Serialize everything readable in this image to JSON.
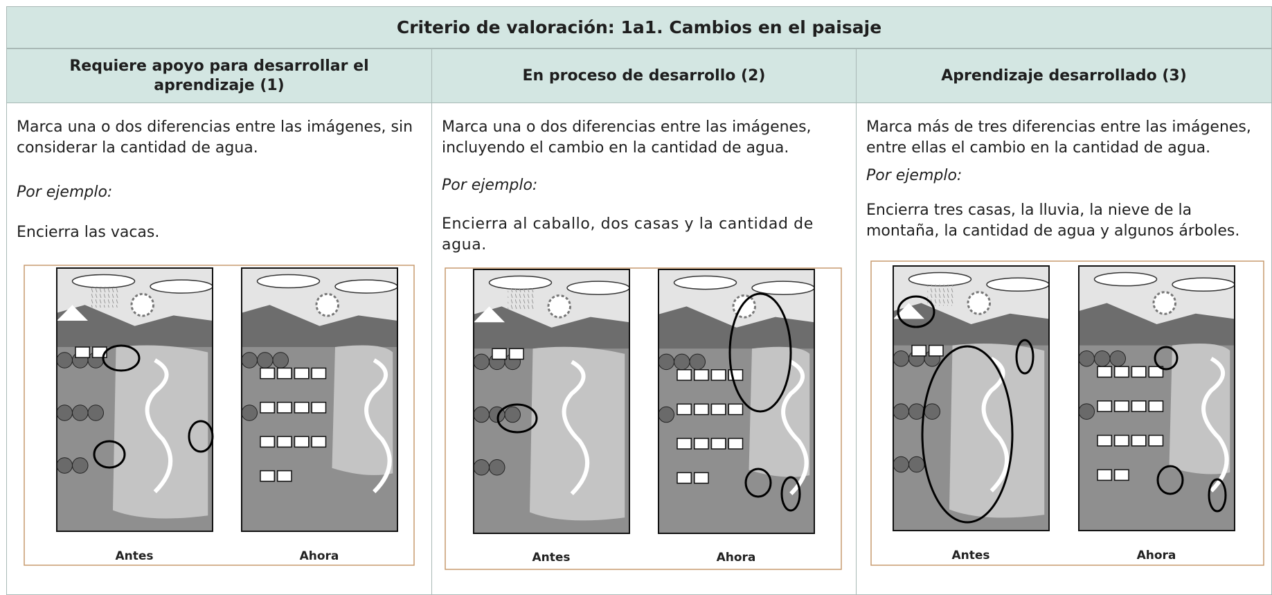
{
  "table": {
    "title": "Criterio de valoración: 1a1. Cambios en el paisaje",
    "columns": [
      {
        "header": "Requiere apoyo para desarrollar el aprendizaje (1)",
        "description": "Marca una o dos diferencias entre las imágenes, sin considerar la cantidad de agua.",
        "example_label": "Por ejemplo:",
        "example": "Encierra las vacas.",
        "images": [
          "Antes",
          "Ahora"
        ]
      },
      {
        "header": "En proceso de desarrollo (2)",
        "description": "Marca una o dos diferencias entre las imágenes, incluyendo el cambio en la cantidad de agua.",
        "example_label": "Por ejemplo:",
        "example": "Encierra al caballo, dos casas y la cantidad de agua.",
        "images": [
          "Antes",
          "Ahora"
        ]
      },
      {
        "header": "Aprendizaje desarrollado (3)",
        "description": "Marca más de tres diferencias entre las imágenes, entre ellas el cambio en la cantidad de agua.",
        "example_label": "Por ejemplo:",
        "example": "Encierra tres casas, la lluvia, la nieve de la montaña, la cantidad de agua y algunos árboles.",
        "images": [
          "Antes",
          "Ahora"
        ]
      }
    ]
  }
}
